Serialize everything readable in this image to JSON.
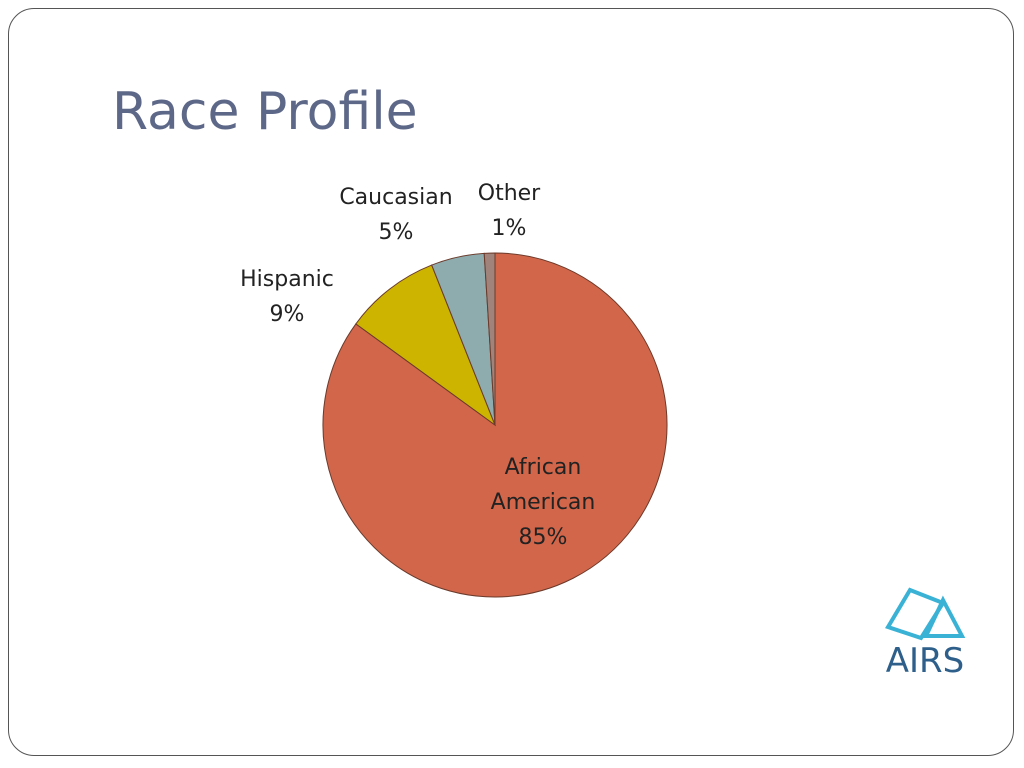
{
  "chart_data": {
    "type": "pie",
    "title": "Race Profile",
    "categories": [
      "African American",
      "Hispanic",
      "Caucasian",
      "Other"
    ],
    "values": [
      85,
      9,
      5,
      1
    ],
    "value_labels": [
      "85%",
      "9%",
      "5%",
      "1%"
    ],
    "colors": [
      "#d2664b",
      "#ccb400",
      "#8eabae",
      "#a0837a"
    ]
  },
  "logo": {
    "text": "AIRS"
  }
}
